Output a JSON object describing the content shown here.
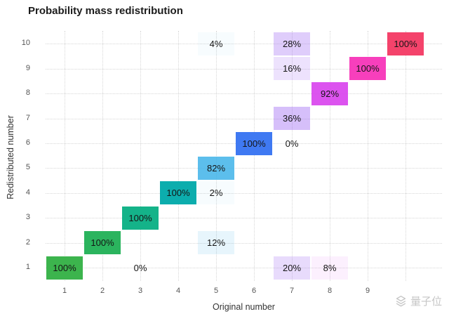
{
  "chart_data": {
    "type": "heatmap",
    "title": "Probability mass redistribution",
    "xlabel": "Original number",
    "ylabel": "Redistributed number",
    "x_ticks": [
      1,
      2,
      3,
      4,
      5,
      6,
      7,
      8,
      9
    ],
    "y_ticks": [
      1,
      2,
      3,
      4,
      5,
      6,
      7,
      8,
      9,
      10
    ],
    "x_range": [
      0.5,
      10.5
    ],
    "y_range": [
      0.5,
      10.5
    ],
    "grid": "dotted",
    "legend": "none",
    "value_suffix": "%",
    "color_rule": "hue by original number (x); fill opacity equals percentage value",
    "column_colors": {
      "1": "#3cb44d",
      "2": "#2bb45e",
      "3": "#14b389",
      "4": "#0cadad",
      "5": "#38b0e8",
      "6": "#3f79f2",
      "7": "#8d4df0",
      "8": "#d944ee",
      "9": "#f73fbc",
      "10": "#f4436b"
    },
    "cells": [
      {
        "x": 1,
        "y": 1,
        "value": 100
      },
      {
        "x": 2,
        "y": 2,
        "value": 100
      },
      {
        "x": 3,
        "y": 1,
        "value": 0
      },
      {
        "x": 3,
        "y": 3,
        "value": 100
      },
      {
        "x": 4,
        "y": 4,
        "value": 100
      },
      {
        "x": 5,
        "y": 2,
        "value": 12
      },
      {
        "x": 5,
        "y": 4,
        "value": 2
      },
      {
        "x": 5,
        "y": 5,
        "value": 82
      },
      {
        "x": 5,
        "y": 10,
        "value": 4
      },
      {
        "x": 6,
        "y": 6,
        "value": 100
      },
      {
        "x": 7,
        "y": 1,
        "value": 20
      },
      {
        "x": 7,
        "y": 6,
        "value": 0
      },
      {
        "x": 7,
        "y": 7,
        "value": 36
      },
      {
        "x": 7,
        "y": 9,
        "value": 16
      },
      {
        "x": 7,
        "y": 10,
        "value": 28
      },
      {
        "x": 8,
        "y": 1,
        "value": 8
      },
      {
        "x": 8,
        "y": 8,
        "value": 92
      },
      {
        "x": 9,
        "y": 9,
        "value": 100
      },
      {
        "x": 10,
        "y": 10,
        "value": 100
      }
    ]
  },
  "watermark": {
    "text": "量子位"
  }
}
